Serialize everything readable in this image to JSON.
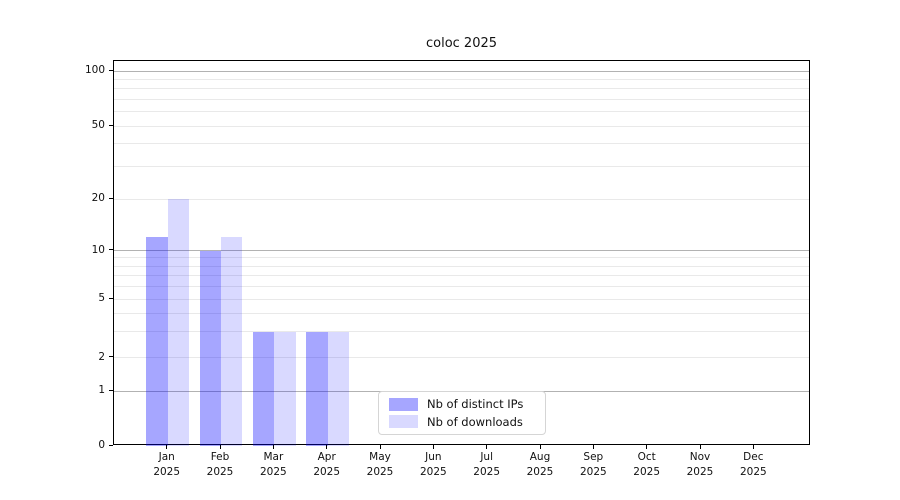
{
  "title": "coloc 2025",
  "chart_data": {
    "type": "bar",
    "title": "coloc 2025",
    "categories": [
      "Jan 2025",
      "Feb 2025",
      "Mar 2025",
      "Apr 2025",
      "May 2025",
      "Jun 2025",
      "Jul 2025",
      "Aug 2025",
      "Sep 2025",
      "Oct 2025",
      "Nov 2025",
      "Dec 2025"
    ],
    "series": [
      {
        "name": "Nb of distinct IPs",
        "color": "#a6a6ff",
        "fill_rgba": "rgba(0,0,255,0.35)",
        "values": [
          12,
          10,
          3,
          3,
          0,
          0,
          0,
          0,
          0,
          0,
          0,
          0
        ]
      },
      {
        "name": "Nb of downloads",
        "color": "#d9d9ff",
        "fill_rgba": "rgba(0,0,255,0.15)",
        "values": [
          20,
          12,
          3,
          3,
          0,
          0,
          0,
          0,
          0,
          0,
          0,
          0
        ]
      }
    ],
    "xlabel": "",
    "ylabel": "",
    "yscale": "symlog",
    "yticks": [
      0,
      1,
      2,
      5,
      10,
      20,
      50,
      100
    ],
    "ylim": [
      0,
      113
    ],
    "grid": "on",
    "grid_major_color": "#b2b2b2",
    "grid_minor_color": "#e9e9e9",
    "legend_position": "lower center inside"
  }
}
